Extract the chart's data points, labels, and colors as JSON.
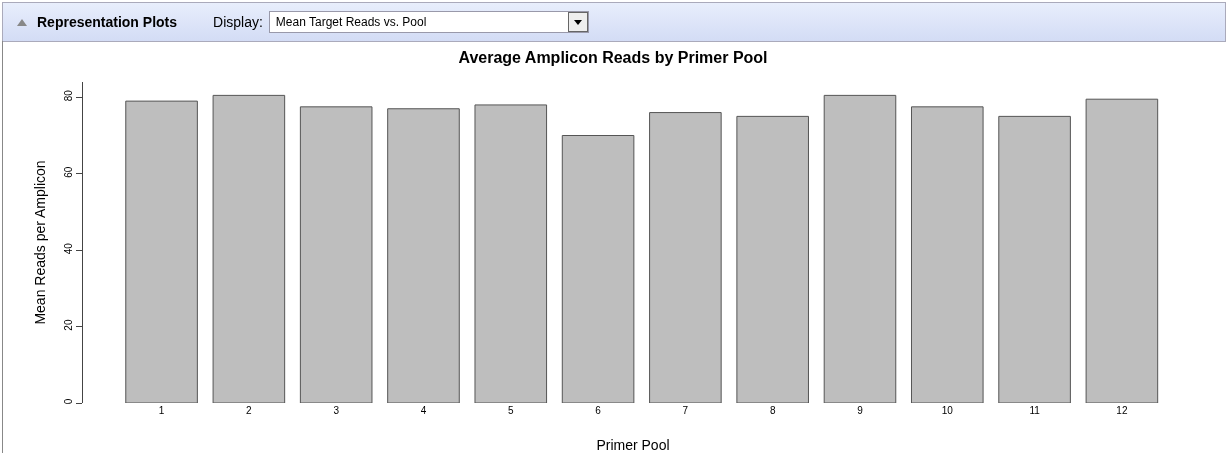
{
  "chart_data": {
    "type": "bar",
    "title": "Average Amplicon Reads by Primer Pool",
    "xlabel": "Primer Pool",
    "ylabel": "Mean Reads per Amplicon",
    "annotations": [
      "Representation Plots",
      "Display:",
      "Mean Target Reads vs. Pool"
    ],
    "categories": [
      "1",
      "2",
      "3",
      "4",
      "5",
      "6",
      "7",
      "8",
      "9",
      "10",
      "11",
      "12"
    ],
    "series": [
      {
        "color": "#bebebe",
        "values": [
          79,
          80.5,
          77.5,
          77,
          78,
          70,
          76,
          75,
          80.5,
          77.5,
          75,
          79.5
        ]
      }
    ],
    "ylim": [
      0,
      84
    ],
    "yticks": [
      0,
      20,
      40,
      60,
      80
    ]
  }
}
